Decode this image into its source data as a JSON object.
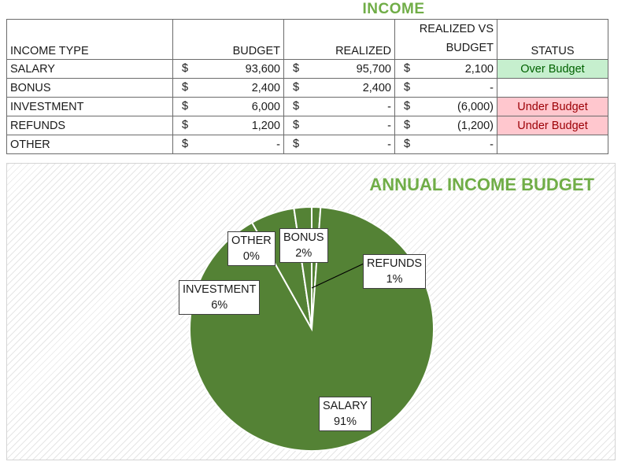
{
  "title": "INCOME",
  "table": {
    "headers": {
      "type": "INCOME TYPE",
      "budget": "BUDGET",
      "realized": "REALIZED",
      "diff_line1": "REALIZED VS",
      "diff_line2": "BUDGET",
      "status": "STATUS"
    },
    "currency": "$",
    "rows": [
      {
        "type": "SALARY",
        "budget": "93,600",
        "realized": "95,700",
        "diff": "2,100",
        "status": "Over Budget"
      },
      {
        "type": "BONUS",
        "budget": "2,400",
        "realized": "2,400",
        "diff": "-",
        "status": ""
      },
      {
        "type": "INVESTMENT",
        "budget": "6,000",
        "realized": "-",
        "diff": "(6,000)",
        "status": "Under Budget"
      },
      {
        "type": "REFUNDS",
        "budget": "1,200",
        "realized": "-",
        "diff": "(1,200)",
        "status": "Under Budget"
      },
      {
        "type": "OTHER",
        "budget": "-",
        "realized": "-",
        "diff": "-",
        "status": ""
      }
    ]
  },
  "colors": {
    "accent": "#70ad47",
    "slice": "#548235",
    "over_budget_bg": "#c6efce",
    "under_budget_bg": "#ffc7ce"
  },
  "chart_data": {
    "type": "pie",
    "title": "ANNUAL INCOME BUDGET",
    "slices": [
      {
        "name": "SALARY",
        "value": 93600,
        "label": "91%"
      },
      {
        "name": "INVESTMENT",
        "value": 6000,
        "label": "6%"
      },
      {
        "name": "OTHER",
        "value": 0,
        "label": "0%"
      },
      {
        "name": "BONUS",
        "value": 2400,
        "label": "2%"
      },
      {
        "name": "REFUNDS",
        "value": 1200,
        "label": "1%"
      }
    ]
  }
}
